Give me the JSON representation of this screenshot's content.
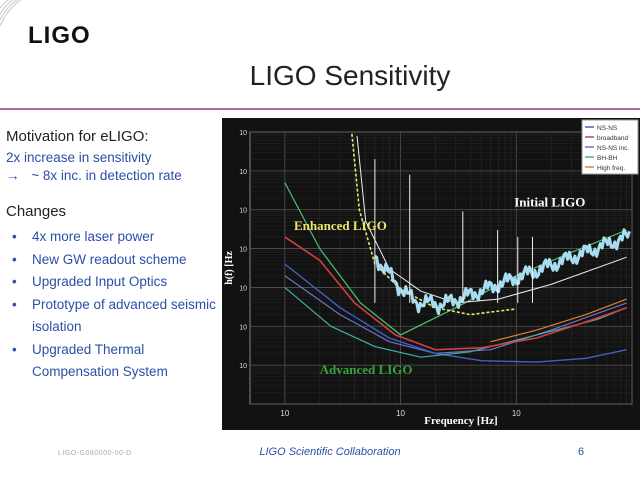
{
  "header": {
    "logo": "LIGO",
    "title": "LIGO Sensitivity"
  },
  "motivation": {
    "heading": "Motivation for eLIGO:",
    "line1": "2x increase in sensitivity",
    "line2_arrow": "→",
    "line2": "~ 8x inc. in detection rate"
  },
  "changes": {
    "heading": "Changes",
    "items": [
      "4x more laser power",
      "New GW readout scheme",
      "Upgraded Input Optics",
      "Prototype of advanced seismic isolation",
      "Upgraded Thermal Compensation System"
    ]
  },
  "chart_data": {
    "type": "line",
    "title": "",
    "xlabel": "Frequency [Hz]",
    "ylabel": "h(f) [Hz",
    "x_scale": "log",
    "y_scale": "log",
    "xlim": [
      5,
      10000
    ],
    "ylim": [
      1e-24,
      1e-17
    ],
    "x_ticks": [
      "10",
      "10",
      "10"
    ],
    "y_ticks": [
      "10",
      "10",
      "10",
      "10",
      "10",
      "10",
      "10"
    ],
    "grid": true,
    "annotations": [
      "Initial LIGO",
      "Enhanced LIGO",
      "Advanced LIGO"
    ],
    "legend": {
      "position": "top-right",
      "entries": [
        "NS-NS",
        "broadband",
        "NS-NS inc.",
        "BH-BH",
        "High freq."
      ]
    },
    "colors": {
      "initial_measured": "#a8dcf0",
      "initial_design": "#f0f0f0",
      "enhanced": "#e8e870",
      "advanced_broadband": "#d04040",
      "advanced_nsns": "#4060c8",
      "advanced_high_freq": "#7070c8",
      "advanced_bhbh": "#40b0a0",
      "advanced_other": "#e08030",
      "initial_envelope": "#50c070"
    }
  },
  "footer": {
    "left": "LIGO-G080000-00-D",
    "center": "LIGO Scientific Collaboration",
    "page": "6"
  }
}
